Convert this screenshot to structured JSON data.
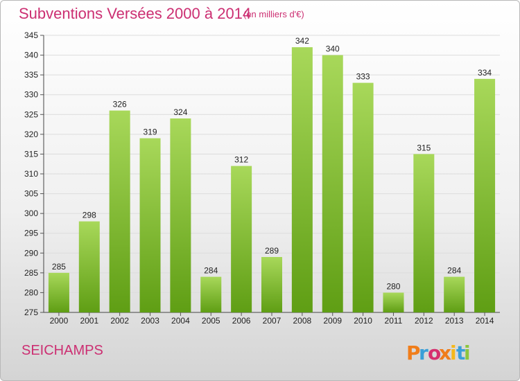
{
  "header": {
    "title": "Subventions Versées 2000 à 2014",
    "subtitle": "(en milliers d'€)"
  },
  "footer": {
    "commune": "SEICHAMPS",
    "logo_text": "Proxiti"
  },
  "colors": {
    "accent": "#cc2f72",
    "bar_light": "#a8d85a",
    "bar_dark": "#5f9e14",
    "logo_letters": [
      "#f07d1a",
      "#3a9fd8",
      "#d62f6e",
      "#f07d1a",
      "#f5b81a",
      "#3a9fd8",
      "#8cc63f"
    ]
  },
  "chart_data": {
    "type": "bar",
    "title": "Subventions Versées 2000 à 2014",
    "subtitle": "(en milliers d'€)",
    "xlabel": "",
    "ylabel": "",
    "categories": [
      "2000",
      "2001",
      "2002",
      "2003",
      "2004",
      "2005",
      "2006",
      "2007",
      "2008",
      "2009",
      "2010",
      "2011",
      "2012",
      "2013",
      "2014"
    ],
    "values": [
      285,
      298,
      326,
      319,
      324,
      284,
      312,
      289,
      342,
      340,
      333,
      280,
      315,
      284,
      334
    ],
    "ylim": [
      275,
      345
    ],
    "yticks": [
      275,
      280,
      285,
      290,
      295,
      300,
      305,
      310,
      315,
      320,
      325,
      330,
      335,
      340,
      345
    ],
    "grid": true,
    "data_labels": true
  }
}
